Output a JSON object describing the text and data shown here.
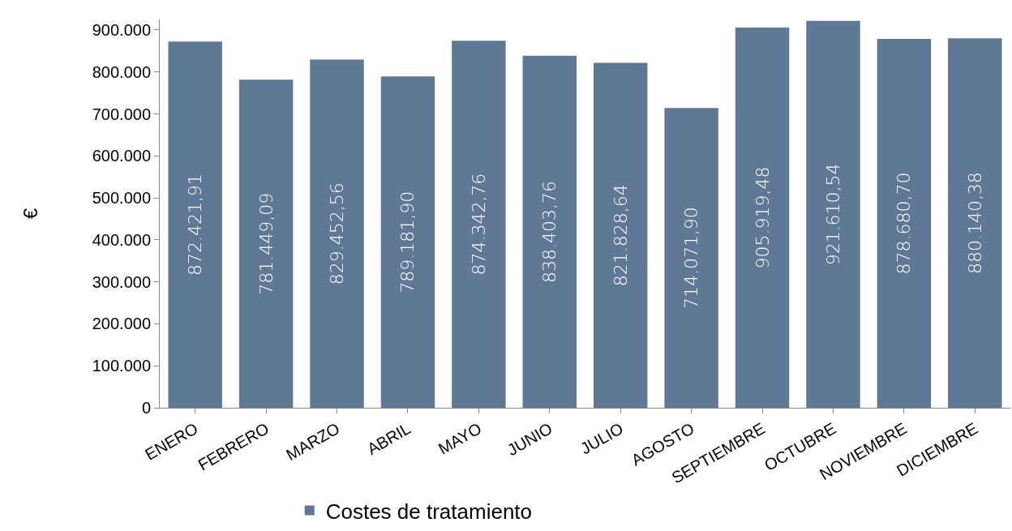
{
  "chart_data": {
    "type": "bar",
    "ylabel": "€",
    "categories": [
      "ENERO",
      "FEBRERO",
      "MARZO",
      "ABRIL",
      "MAYO",
      "JUNIO",
      "JULIO",
      "AGOSTO",
      "SEPTIEMBRE",
      "OCTUBRE",
      "NOVIEMBRE",
      "DICIEMBRE"
    ],
    "series": [
      {
        "name": "Costes de tratamiento",
        "color": "#5f7896",
        "values": [
          872421.91,
          781449.09,
          829452.56,
          789181.9,
          874342.76,
          838403.76,
          821828.64,
          714071.9,
          905919.48,
          921610.54,
          878680.7,
          880140.38
        ],
        "value_labels": [
          "872.421,91",
          "781.449,09",
          "829.452,56",
          "789.181,90",
          "874.342,76",
          "838.403,76",
          "821.828,64",
          "714.071,90",
          "905.919,48",
          "921.610,54",
          "878.680,70",
          "880.140,38"
        ]
      }
    ],
    "ylim": [
      0,
      925000
    ],
    "yticks": [
      0,
      {
        "value": 100000,
        "label": "100.000"
      },
      {
        "value": 200000,
        "label": "200.000"
      },
      {
        "value": 300000,
        "label": "300.000"
      },
      {
        "value": 400000,
        "label": "400.000"
      },
      {
        "value": 500000,
        "label": "500.000"
      },
      {
        "value": 600000,
        "label": "600.000"
      },
      {
        "value": 700000,
        "label": "700.000"
      },
      {
        "value": 800000,
        "label": "800.000"
      },
      {
        "value": 900000,
        "label": "900.000"
      }
    ],
    "grid": false,
    "legend": "bottom"
  }
}
